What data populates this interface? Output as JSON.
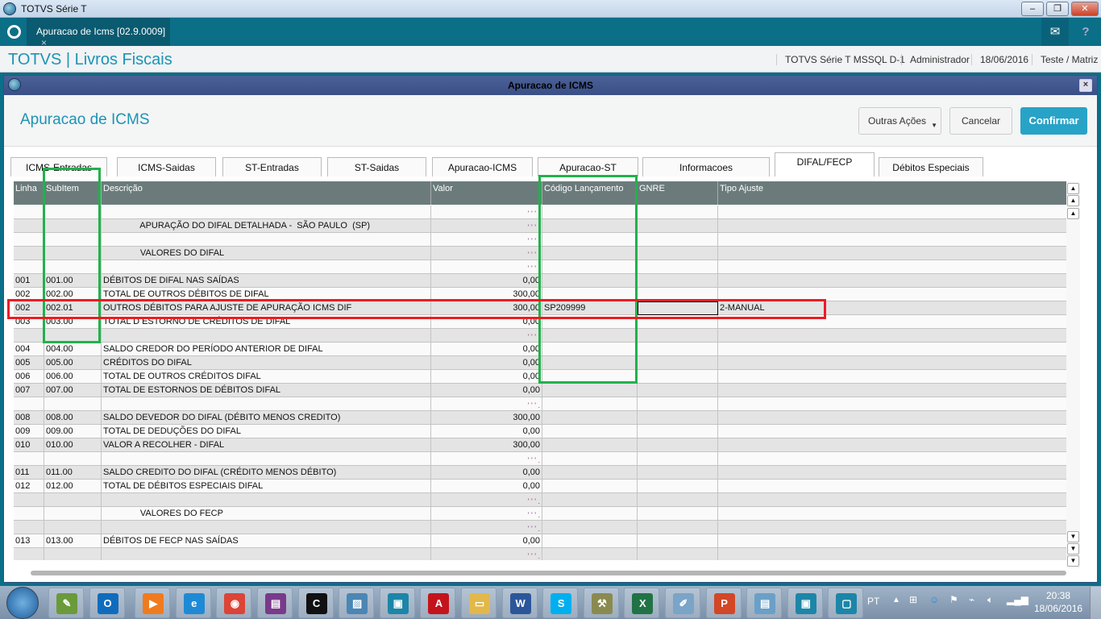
{
  "window": {
    "title": "TOTVS Série T",
    "min": "–",
    "max": "❐",
    "close": "✕"
  },
  "apptab": {
    "label": "Apuracao de Icms [02.9.0009]",
    "close": "×",
    "mail": "✉",
    "help": "?"
  },
  "header": {
    "brand": "TOTVS | Livros Fiscais",
    "env": "TOTVS Série T  MSSQL D-1",
    "user": "Administrador",
    "date": "18/06/2016",
    "company": "Teste / Matriz"
  },
  "dialog": {
    "title": "Apuracao de ICMS",
    "close": "×",
    "heading": "Apuracao de ICMS",
    "other_actions": "Outras Ações",
    "cancel": "Cancelar",
    "confirm": "Confirmar",
    "accent": "#1b94b5"
  },
  "tabs": [
    "ICMS-Entradas",
    "ICMS-Saidas",
    "ST-Entradas",
    "ST-Saidas",
    "Apuracao-ICMS",
    "Apuracao-ST",
    "Informacoes Complementares",
    "DIFAL/FECP",
    "Débitos Especiais"
  ],
  "active_tab": "DIFAL/FECP",
  "grid": {
    "columns": [
      "Linha",
      "SubItem",
      "Descrição",
      "Valor",
      "Código Lançamento",
      "GNRE",
      "Tipo Ajuste"
    ],
    "rows": [
      {
        "linha": "",
        "sub": "",
        "desc": "",
        "valor": "' ' ' .",
        "cod": "",
        "gnre": "",
        "tipo": ""
      },
      {
        "linha": "",
        "sub": "",
        "desc": "               APURAÇÃO DO DIFAL DETALHADA -  SÃO PAULO  (SP)",
        "valor": "' ' ' .",
        "cod": "",
        "gnre": "",
        "tipo": ""
      },
      {
        "linha": "",
        "sub": "",
        "desc": "",
        "valor": "' ' ' .",
        "cod": "",
        "gnre": "",
        "tipo": ""
      },
      {
        "linha": "",
        "sub": "",
        "desc": "               VALORES DO DIFAL",
        "valor": "' ' ' .",
        "cod": "",
        "gnre": "",
        "tipo": ""
      },
      {
        "linha": "",
        "sub": "",
        "desc": "",
        "valor": "' ' ' .",
        "cod": "",
        "gnre": "",
        "tipo": ""
      },
      {
        "linha": "001",
        "sub": "001.00",
        "desc": "DÉBITOS DE DIFAL NAS SAÍDAS",
        "valor": "0,00",
        "cod": "",
        "gnre": "",
        "tipo": ""
      },
      {
        "linha": "002",
        "sub": "002.00",
        "desc": "TOTAL DE OUTROS DÉBITOS DE DIFAL",
        "valor": "300,00",
        "cod": "",
        "gnre": "",
        "tipo": ""
      },
      {
        "linha": "002",
        "sub": "002.01",
        "desc": "OUTROS DÉBITOS PARA AJUSTE DE APURAÇÃO ICMS DIF",
        "valor": "300,00",
        "cod": "SP209999",
        "gnre": "",
        "tipo": "2-MANUAL",
        "selected": true
      },
      {
        "linha": "003",
        "sub": "003.00",
        "desc": "TOTAL D ESTORNO DE CRÉDITOS DE DIFAL",
        "valor": "0,00",
        "cod": "",
        "gnre": "",
        "tipo": ""
      },
      {
        "linha": "",
        "sub": "",
        "desc": "",
        "valor": "' ' ' .",
        "cod": "",
        "gnre": "",
        "tipo": ""
      },
      {
        "linha": "004",
        "sub": "004.00",
        "desc": "SALDO CREDOR DO PERÍODO ANTERIOR DE DIFAL",
        "valor": "0,00",
        "cod": "",
        "gnre": "",
        "tipo": ""
      },
      {
        "linha": "005",
        "sub": "005.00",
        "desc": "CRÉDITOS DO DIFAL",
        "valor": "0,00",
        "cod": "",
        "gnre": "",
        "tipo": ""
      },
      {
        "linha": "006",
        "sub": "006.00",
        "desc": "TOTAL DE OUTROS CRÉDITOS DIFAL",
        "valor": "0,00",
        "cod": "",
        "gnre": "",
        "tipo": ""
      },
      {
        "linha": "007",
        "sub": "007.00",
        "desc": "TOTAL DE ESTORNOS DE DÉBITOS DIFAL",
        "valor": "0,00",
        "cod": "",
        "gnre": "",
        "tipo": ""
      },
      {
        "linha": "",
        "sub": "",
        "desc": "",
        "valor": "' ' ' .",
        "cod": "",
        "gnre": "",
        "tipo": ""
      },
      {
        "linha": "008",
        "sub": "008.00",
        "desc": "SALDO DEVEDOR DO DIFAL (DÉBITO MENOS CREDITO)",
        "valor": "300,00",
        "cod": "",
        "gnre": "",
        "tipo": ""
      },
      {
        "linha": "009",
        "sub": "009.00",
        "desc": "TOTAL DE DEDUÇÕES DO DIFAL",
        "valor": "0,00",
        "cod": "",
        "gnre": "",
        "tipo": ""
      },
      {
        "linha": "010",
        "sub": "010.00",
        "desc": "VALOR A RECOLHER - DIFAL",
        "valor": "300,00",
        "cod": "",
        "gnre": "",
        "tipo": ""
      },
      {
        "linha": "",
        "sub": "",
        "desc": "",
        "valor": "' ' ' .",
        "cod": "",
        "gnre": "",
        "tipo": ""
      },
      {
        "linha": "011",
        "sub": "011.00",
        "desc": "SALDO CREDITO DO DIFAL (CRÉDITO MENOS DÉBITO)",
        "valor": "0,00",
        "cod": "",
        "gnre": "",
        "tipo": ""
      },
      {
        "linha": "012",
        "sub": "012.00",
        "desc": "TOTAL DE DÉBITOS ESPECIAIS DIFAL",
        "valor": "0,00",
        "cod": "",
        "gnre": "",
        "tipo": ""
      },
      {
        "linha": "",
        "sub": "",
        "desc": "",
        "valor": "' ' ' .",
        "cod": "",
        "gnre": "",
        "tipo": ""
      },
      {
        "linha": "",
        "sub": "",
        "desc": "               VALORES DO FECP",
        "valor": "' ' ' .",
        "cod": "",
        "gnre": "",
        "tipo": ""
      },
      {
        "linha": "",
        "sub": "",
        "desc": "",
        "valor": "' ' ' .",
        "cod": "",
        "gnre": "",
        "tipo": ""
      },
      {
        "linha": "013",
        "sub": "013.00",
        "desc": "DÉBITOS DE FECP NAS SAÍDAS",
        "valor": "0,00",
        "cod": "",
        "gnre": "",
        "tipo": ""
      },
      {
        "linha": "",
        "sub": "",
        "desc": "",
        "valor": "' ' ' .",
        "cod": "",
        "gnre": "",
        "tipo": ""
      }
    ]
  },
  "annotation_colors": {
    "green": "#22b14c",
    "red": "#ed1c24"
  },
  "taskbar": {
    "apps": [
      {
        "name": "notepadpp",
        "glyph": "✎",
        "color": "#6a9a3a"
      },
      {
        "name": "outlook",
        "glyph": "O",
        "color": "#0f6cbd"
      },
      {
        "name": "media-player",
        "glyph": "▶",
        "color": "#f07b1e"
      },
      {
        "name": "internet-explorer",
        "glyph": "e",
        "color": "#1e8ad6"
      },
      {
        "name": "chrome",
        "glyph": "◉",
        "color": "#db4437"
      },
      {
        "name": "winrar",
        "glyph": "▤",
        "color": "#7a3a8a"
      },
      {
        "name": "ccleaner",
        "glyph": "C",
        "color": "#111"
      },
      {
        "name": "photo-viewer",
        "glyph": "▨",
        "color": "#4b86b4"
      },
      {
        "name": "remote-desktop",
        "glyph": "▣",
        "color": "#1c86a8"
      },
      {
        "name": "acrobat",
        "glyph": "A",
        "color": "#c4141b"
      },
      {
        "name": "file-explorer",
        "glyph": "▭",
        "color": "#e2b84a"
      },
      {
        "name": "word",
        "glyph": "W",
        "color": "#2b579a"
      },
      {
        "name": "skype",
        "glyph": "S",
        "color": "#00aff0"
      },
      {
        "name": "dev-tools",
        "glyph": "⚒",
        "color": "#8a8a50"
      },
      {
        "name": "excel",
        "glyph": "X",
        "color": "#217346"
      },
      {
        "name": "paint",
        "glyph": "✐",
        "color": "#7aa4c8"
      },
      {
        "name": "powerpoint",
        "glyph": "P",
        "color": "#d24726"
      },
      {
        "name": "notepad",
        "glyph": "▤",
        "color": "#6aa0c8"
      },
      {
        "name": "totvs-smartclient",
        "glyph": "▣",
        "color": "#1c86a8"
      },
      {
        "name": "totvs-smartclient-2",
        "glyph": "▢",
        "color": "#1c86a8"
      }
    ],
    "lang": "PT",
    "time": "20:38",
    "date": "18/06/2016"
  }
}
